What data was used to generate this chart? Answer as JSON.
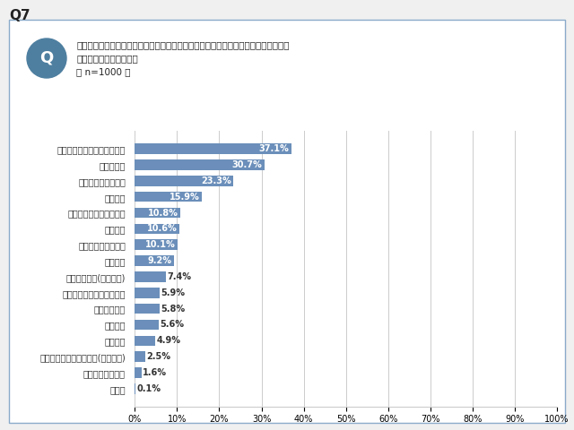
{
  "title_q": "Q7",
  "question_line1": "あなたは、電動アシスト自転車運転中に以下のマナー違反をしたことがありますか。",
  "question_line2": "（お答えはいくつでも）",
  "question_line3": "（ n=1000 ）",
  "categories": [
    "マナー違反をしたことがない",
    "歩道を走る",
    "雨の日の傘さし運転",
    "信号無視",
    "子供のヘルメット無着用",
    "逆走運転",
    "スピードの出しすぎ",
    "イヤホン",
    "ながらスマホ(携帯電話)",
    "子供のシートベルト無装着",
    "夜間の無灯火",
    "並走運転",
    "並走運転",
    "イヤホン＋ながらスマホ(携帯電話)",
    "ブレーキ不良運転",
    "その他"
  ],
  "values": [
    37.1,
    30.7,
    23.3,
    15.9,
    10.8,
    10.6,
    10.1,
    9.2,
    7.4,
    5.9,
    5.8,
    5.6,
    4.9,
    2.5,
    1.6,
    0.1
  ],
  "labels": [
    "37.1%",
    "30.7%",
    "23.3%",
    "15.9%",
    "10.8%",
    "10.6%",
    "10.1%",
    "9.2%",
    "7.4%",
    "5.9%",
    "5.8%",
    "5.6%",
    "4.9%",
    "2.5%",
    "1.6%",
    "0.1%"
  ],
  "bar_color": "#6b8fba",
  "bg_color": "#ffffff",
  "border_color": "#a0b0c0",
  "q_circle_color": "#4e7fa0",
  "xlim": [
    0,
    100
  ],
  "xticks": [
    0,
    10,
    20,
    30,
    40,
    50,
    60,
    70,
    80,
    90,
    100
  ],
  "xtick_labels": [
    "0%",
    "10%",
    "20%",
    "30%",
    "40%",
    "50%",
    "60%",
    "70%",
    "80%",
    "90%",
    "100%"
  ],
  "white_label_threshold": 7.5
}
